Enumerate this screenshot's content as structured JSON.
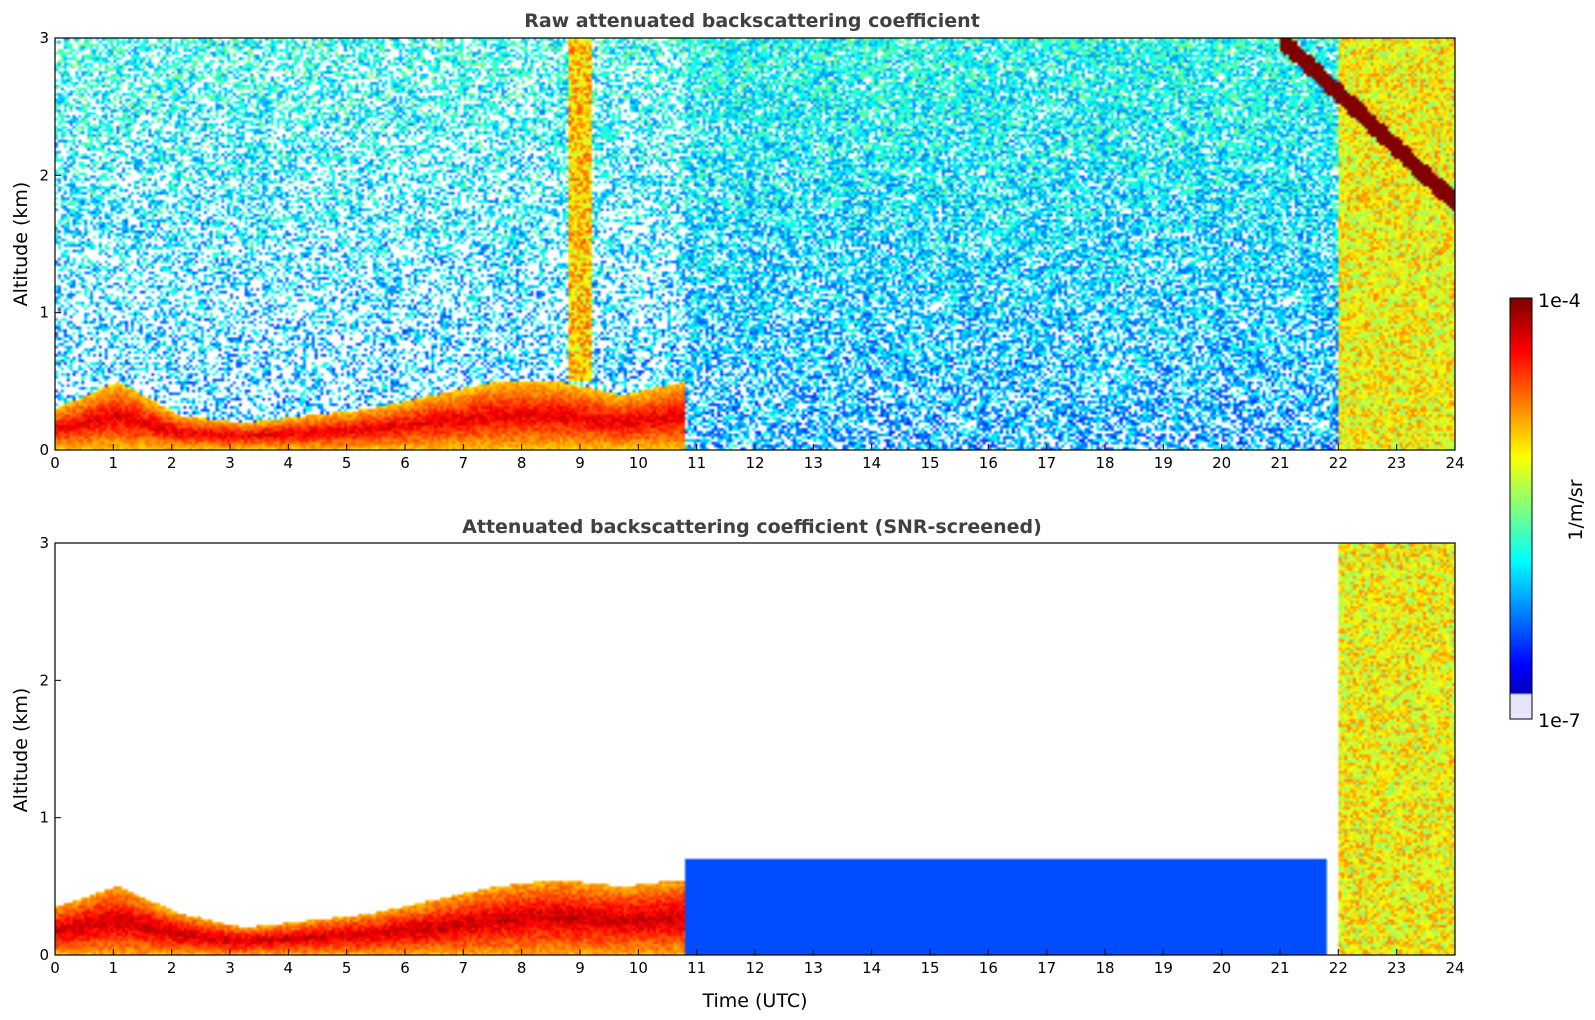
{
  "chart_data": [
    {
      "type": "heatmap",
      "title": "Raw attenuated backscattering coefficient",
      "xlabel": "",
      "ylabel": "Altitude (km)",
      "xlim": [
        0,
        24
      ],
      "ylim": [
        0,
        3
      ],
      "x_ticks": [
        0,
        1,
        2,
        3,
        4,
        5,
        6,
        7,
        8,
        9,
        10,
        11,
        12,
        13,
        14,
        15,
        16,
        17,
        18,
        19,
        20,
        21,
        22,
        23,
        24
      ],
      "y_ticks": [
        0,
        1,
        2,
        3
      ],
      "features": [
        {
          "label": "boundary layer",
          "t_start": 0,
          "t_end": 10.8,
          "top_km": [
            0.3,
            0.5,
            0.25,
            0.2,
            0.25,
            0.3,
            0.4,
            0.5,
            0.5,
            0.4,
            0.5
          ],
          "level": 0.95
        },
        {
          "label": "clouds 9h",
          "t_start": 8.8,
          "t_end": 9.2,
          "alt_km": [
            0.5,
            3.0
          ],
          "level": 0.8
        },
        {
          "label": "clouds 22-24h",
          "t_start": 22.0,
          "t_end": 24.0,
          "alt_km": [
            0,
            3.0
          ],
          "level": 0.75
        },
        {
          "label": "cloud top layer",
          "t_start": 21.0,
          "t_end": 24.0,
          "alt_km_start": 3.0,
          "alt_km_end": 1.8,
          "level": 1.0
        }
      ],
      "noise": "high"
    },
    {
      "type": "heatmap",
      "title": "Attenuated backscattering coefficient (SNR-screened)",
      "xlabel": "Time (UTC)",
      "ylabel": "Altitude (km)",
      "xlim": [
        0,
        24
      ],
      "ylim": [
        0,
        3
      ],
      "x_ticks": [
        0,
        1,
        2,
        3,
        4,
        5,
        6,
        7,
        8,
        9,
        10,
        11,
        12,
        13,
        14,
        15,
        16,
        17,
        18,
        19,
        20,
        21,
        22,
        23,
        24
      ],
      "y_ticks": [
        0,
        1,
        2,
        3
      ],
      "features": [
        {
          "label": "boundary layer",
          "t_start": 0,
          "t_end": 10.8,
          "top_km": [
            0.35,
            0.5,
            0.3,
            0.2,
            0.25,
            0.3,
            0.4,
            0.5,
            0.55,
            0.5,
            0.55
          ],
          "level": 0.98
        },
        {
          "label": "low aerosol",
          "t_start": 10.8,
          "t_end": 21.8,
          "top_km": 0.7,
          "level": 0.2
        },
        {
          "label": "clouds 22-24h",
          "t_start": 22.0,
          "t_end": 24.0,
          "alt_km": [
            0,
            3.0
          ],
          "level": 0.75
        }
      ],
      "noise": "screened"
    }
  ],
  "colorbar": {
    "label": "1/m/sr",
    "max_label": "1e-4",
    "min_label": "1e-7",
    "colormap": "jet"
  }
}
